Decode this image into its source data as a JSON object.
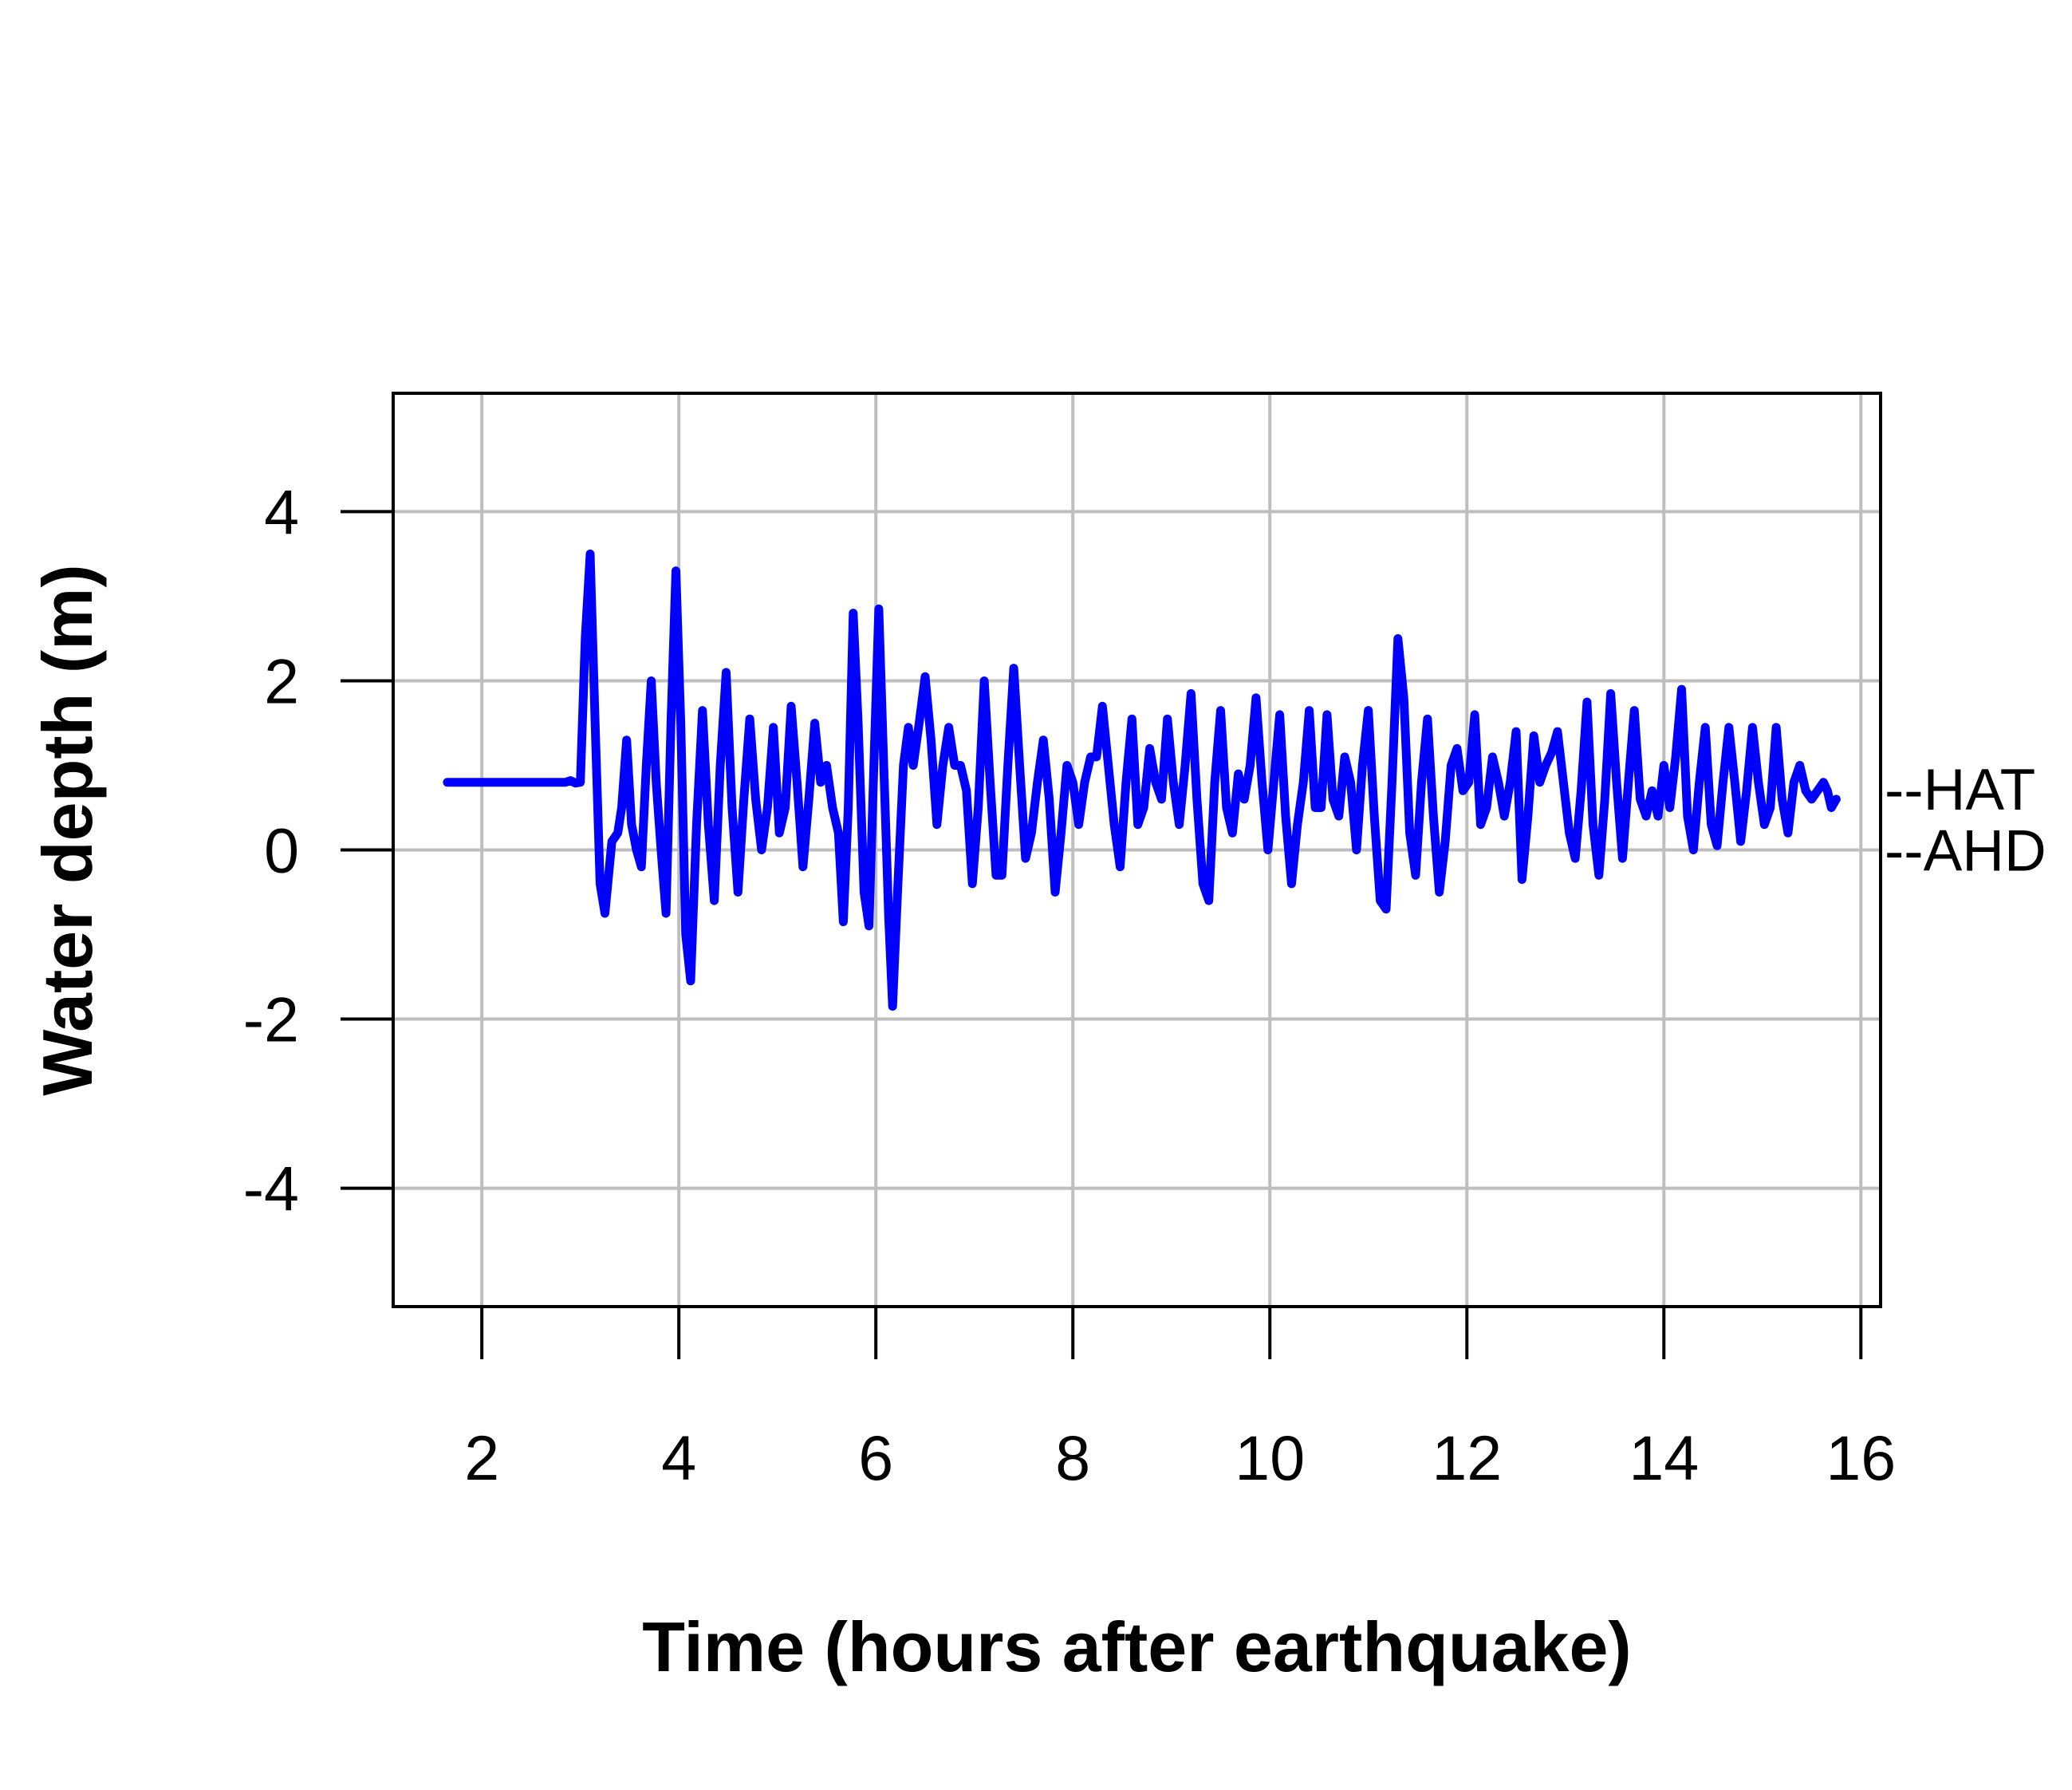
{
  "chart_data": {
    "type": "line",
    "title": "",
    "xlabel": "Time (hours after earthquake)",
    "ylabel": "Water depth (m)",
    "xlim": [
      1.1,
      16.2
    ],
    "ylim": [
      -5.4,
      5.4
    ],
    "x_ticks": [
      2,
      4,
      6,
      8,
      10,
      12,
      14,
      16
    ],
    "y_ticks": [
      -4,
      -2,
      0,
      2,
      4
    ],
    "x_tick_labels": [
      "2",
      "4",
      "6",
      "8",
      "10",
      "12",
      "14",
      "16"
    ],
    "y_tick_labels": [
      "-4",
      "-2",
      "0",
      "2",
      "4"
    ],
    "grid": true,
    "grid_color": "#bebebe",
    "reference_lines": [
      {
        "name": "HAT",
        "label": "--HAT",
        "y": 0.72
      },
      {
        "name": "AHD",
        "label": "--AHD",
        "y": 0.0
      }
    ],
    "series": [
      {
        "color": "#0000ff",
        "points": [
          [
            1.65,
            0.8
          ],
          [
            2.0,
            0.8
          ],
          [
            2.5,
            0.8
          ],
          [
            2.85,
            0.8
          ],
          [
            2.9,
            0.82
          ],
          [
            2.95,
            0.79
          ],
          [
            3.0,
            0.8
          ],
          [
            3.05,
            2.5
          ],
          [
            3.1,
            3.5
          ],
          [
            3.15,
            1.5
          ],
          [
            3.2,
            -0.4
          ],
          [
            3.25,
            -0.75
          ],
          [
            3.32,
            0.1
          ],
          [
            3.38,
            0.2
          ],
          [
            3.42,
            0.5
          ],
          [
            3.47,
            1.3
          ],
          [
            3.52,
            0.3
          ],
          [
            3.57,
            0.0
          ],
          [
            3.62,
            -0.2
          ],
          [
            3.67,
            1.0
          ],
          [
            3.72,
            2.0
          ],
          [
            3.77,
            0.8
          ],
          [
            3.82,
            0.0
          ],
          [
            3.87,
            -0.75
          ],
          [
            3.92,
            1.5
          ],
          [
            3.97,
            3.3
          ],
          [
            4.02,
            1.5
          ],
          [
            4.07,
            -1.0
          ],
          [
            4.12,
            -1.55
          ],
          [
            4.18,
            0.3
          ],
          [
            4.24,
            1.65
          ],
          [
            4.3,
            0.3
          ],
          [
            4.36,
            -0.6
          ],
          [
            4.42,
            1.0
          ],
          [
            4.48,
            2.1
          ],
          [
            4.54,
            0.5
          ],
          [
            4.6,
            -0.5
          ],
          [
            4.66,
            0.6
          ],
          [
            4.72,
            1.55
          ],
          [
            4.78,
            0.6
          ],
          [
            4.84,
            0.0
          ],
          [
            4.9,
            0.5
          ],
          [
            4.96,
            1.45
          ],
          [
            5.02,
            0.2
          ],
          [
            5.08,
            0.5
          ],
          [
            5.14,
            1.7
          ],
          [
            5.2,
            0.8
          ],
          [
            5.26,
            -0.2
          ],
          [
            5.32,
            0.6
          ],
          [
            5.38,
            1.5
          ],
          [
            5.44,
            0.8
          ],
          [
            5.5,
            1.0
          ],
          [
            5.56,
            0.5
          ],
          [
            5.62,
            0.2
          ],
          [
            5.67,
            -0.85
          ],
          [
            5.72,
            0.5
          ],
          [
            5.77,
            2.8
          ],
          [
            5.82,
            1.5
          ],
          [
            5.88,
            -0.5
          ],
          [
            5.93,
            -0.9
          ],
          [
            5.98,
            1.0
          ],
          [
            6.03,
            2.85
          ],
          [
            6.08,
            1.0
          ],
          [
            6.13,
            -0.8
          ],
          [
            6.17,
            -1.85
          ],
          [
            6.22,
            -0.5
          ],
          [
            6.28,
            1.0
          ],
          [
            6.33,
            1.45
          ],
          [
            6.38,
            1.0
          ],
          [
            6.44,
            1.5
          ],
          [
            6.5,
            2.05
          ],
          [
            6.56,
            1.3
          ],
          [
            6.62,
            0.3
          ],
          [
            6.68,
            1.0
          ],
          [
            6.74,
            1.45
          ],
          [
            6.8,
            1.0
          ],
          [
            6.86,
            1.0
          ],
          [
            6.92,
            0.7
          ],
          [
            6.98,
            -0.4
          ],
          [
            7.04,
            0.5
          ],
          [
            7.1,
            2.0
          ],
          [
            7.16,
            0.8
          ],
          [
            7.22,
            -0.3
          ],
          [
            7.28,
            -0.3
          ],
          [
            7.34,
            1.0
          ],
          [
            7.4,
            2.15
          ],
          [
            7.46,
            1.0
          ],
          [
            7.52,
            -0.1
          ],
          [
            7.58,
            0.2
          ],
          [
            7.64,
            0.8
          ],
          [
            7.7,
            1.3
          ],
          [
            7.76,
            0.6
          ],
          [
            7.82,
            -0.5
          ],
          [
            7.88,
            0.2
          ],
          [
            7.94,
            1.0
          ],
          [
            8.0,
            0.8
          ],
          [
            8.06,
            0.3
          ],
          [
            8.12,
            0.8
          ],
          [
            8.18,
            1.1
          ],
          [
            8.24,
            1.1
          ],
          [
            8.3,
            1.7
          ],
          [
            8.36,
            1.0
          ],
          [
            8.42,
            0.3
          ],
          [
            8.48,
            -0.2
          ],
          [
            8.54,
            0.8
          ],
          [
            8.6,
            1.55
          ],
          [
            8.66,
            0.3
          ],
          [
            8.72,
            0.5
          ],
          [
            8.78,
            1.2
          ],
          [
            8.84,
            0.8
          ],
          [
            8.9,
            0.6
          ],
          [
            8.96,
            1.55
          ],
          [
            9.02,
            0.8
          ],
          [
            9.08,
            0.3
          ],
          [
            9.14,
            1.0
          ],
          [
            9.2,
            1.85
          ],
          [
            9.26,
            0.6
          ],
          [
            9.32,
            -0.4
          ],
          [
            9.38,
            -0.6
          ],
          [
            9.44,
            0.8
          ],
          [
            9.5,
            1.65
          ],
          [
            9.56,
            0.5
          ],
          [
            9.62,
            0.2
          ],
          [
            9.68,
            0.9
          ],
          [
            9.74,
            0.6
          ],
          [
            9.8,
            1.0
          ],
          [
            9.86,
            1.8
          ],
          [
            9.92,
            0.8
          ],
          [
            9.98,
            0.0
          ],
          [
            10.04,
            0.8
          ],
          [
            10.1,
            1.6
          ],
          [
            10.16,
            0.4
          ],
          [
            10.22,
            -0.4
          ],
          [
            10.28,
            0.3
          ],
          [
            10.34,
            0.8
          ],
          [
            10.4,
            1.65
          ],
          [
            10.46,
            0.5
          ],
          [
            10.52,
            0.5
          ],
          [
            10.58,
            1.6
          ],
          [
            10.64,
            0.6
          ],
          [
            10.7,
            0.4
          ],
          [
            10.76,
            1.1
          ],
          [
            10.82,
            0.8
          ],
          [
            10.88,
            0.0
          ],
          [
            10.94,
            1.0
          ],
          [
            11.0,
            1.65
          ],
          [
            11.06,
            0.4
          ],
          [
            11.12,
            -0.6
          ],
          [
            11.18,
            -0.7
          ],
          [
            11.24,
            0.8
          ],
          [
            11.3,
            2.5
          ],
          [
            11.36,
            1.8
          ],
          [
            11.42,
            0.2
          ],
          [
            11.48,
            -0.3
          ],
          [
            11.54,
            0.8
          ],
          [
            11.6,
            1.55
          ],
          [
            11.66,
            0.4
          ],
          [
            11.72,
            -0.5
          ],
          [
            11.78,
            0.1
          ],
          [
            11.84,
            1.0
          ],
          [
            11.9,
            1.2
          ],
          [
            11.96,
            0.7
          ],
          [
            12.02,
            0.8
          ],
          [
            12.08,
            1.6
          ],
          [
            12.14,
            0.3
          ],
          [
            12.2,
            0.5
          ],
          [
            12.26,
            1.1
          ],
          [
            12.32,
            0.8
          ],
          [
            12.38,
            0.4
          ],
          [
            12.44,
            0.8
          ],
          [
            12.5,
            1.4
          ],
          [
            12.56,
            -0.35
          ],
          [
            12.62,
            0.4
          ],
          [
            12.68,
            1.35
          ],
          [
            12.74,
            0.8
          ],
          [
            12.8,
            1.0
          ],
          [
            12.86,
            1.15
          ],
          [
            12.92,
            1.4
          ],
          [
            12.98,
            0.8
          ],
          [
            13.04,
            0.2
          ],
          [
            13.1,
            -0.1
          ],
          [
            13.16,
            0.7
          ],
          [
            13.22,
            1.75
          ],
          [
            13.28,
            0.3
          ],
          [
            13.34,
            -0.3
          ],
          [
            13.4,
            0.6
          ],
          [
            13.46,
            1.85
          ],
          [
            13.52,
            0.8
          ],
          [
            13.58,
            -0.1
          ],
          [
            13.64,
            0.8
          ],
          [
            13.7,
            1.65
          ],
          [
            13.76,
            0.6
          ],
          [
            13.82,
            0.4
          ],
          [
            13.88,
            0.7
          ],
          [
            13.94,
            0.4
          ],
          [
            14.0,
            1.0
          ],
          [
            14.06,
            0.5
          ],
          [
            14.12,
            1.1
          ],
          [
            14.18,
            1.9
          ],
          [
            14.24,
            0.4
          ],
          [
            14.3,
            0.0
          ],
          [
            14.36,
            0.8
          ],
          [
            14.42,
            1.45
          ],
          [
            14.48,
            0.3
          ],
          [
            14.54,
            0.05
          ],
          [
            14.6,
            0.8
          ],
          [
            14.66,
            1.45
          ],
          [
            14.72,
            0.8
          ],
          [
            14.78,
            0.1
          ],
          [
            14.84,
            0.7
          ],
          [
            14.9,
            1.45
          ],
          [
            14.96,
            0.8
          ],
          [
            15.02,
            0.3
          ],
          [
            15.08,
            0.5
          ],
          [
            15.14,
            1.45
          ],
          [
            15.2,
            0.6
          ],
          [
            15.26,
            0.2
          ],
          [
            15.32,
            0.8
          ],
          [
            15.38,
            1.0
          ],
          [
            15.44,
            0.7
          ],
          [
            15.5,
            0.6
          ],
          [
            15.56,
            0.7
          ],
          [
            15.62,
            0.8
          ],
          [
            15.66,
            0.7
          ],
          [
            15.7,
            0.5
          ],
          [
            15.75,
            0.6
          ]
        ]
      }
    ]
  }
}
